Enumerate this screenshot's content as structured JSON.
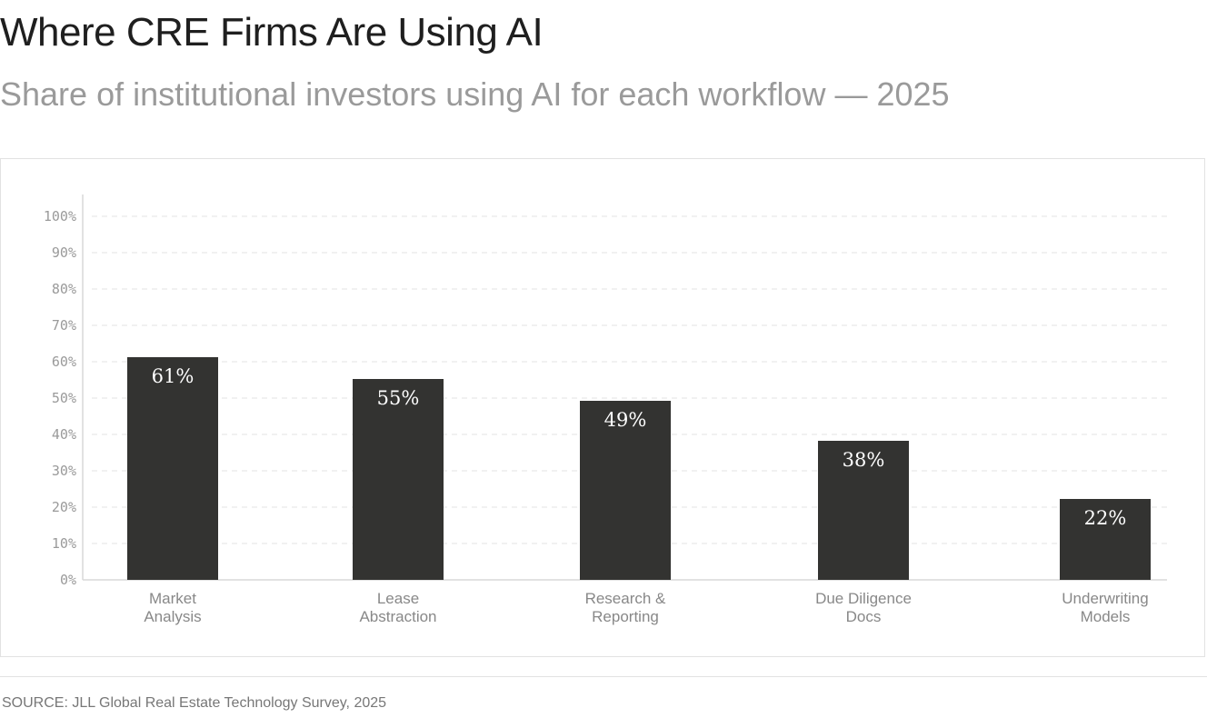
{
  "header": {
    "title": "Where CRE Firms Are Using AI",
    "subtitle": "Share of institutional investors using AI for each workflow — 2025"
  },
  "footer": {
    "source": "SOURCE: JLL Global Real Estate Technology Survey, 2025"
  },
  "colors": {
    "bar": "#333331",
    "grid": "#e3e3e3",
    "axis": "#d8d8d8",
    "tick_text": "#9a9a9a",
    "category_text": "#888888",
    "value_text": "#ffffff"
  },
  "chart_data": {
    "type": "bar",
    "categories": [
      [
        "Market",
        "Analysis"
      ],
      [
        "Lease",
        "Abstraction"
      ],
      [
        "Research &",
        "Reporting"
      ],
      [
        "Due Diligence",
        "Docs"
      ],
      [
        "Underwriting",
        "Models"
      ]
    ],
    "values": [
      61,
      55,
      49,
      38,
      22
    ],
    "value_labels": [
      "61%",
      "55%",
      "49%",
      "38%",
      "22%"
    ],
    "y_ticks": [
      0,
      10,
      20,
      30,
      40,
      50,
      60,
      70,
      80,
      90,
      100
    ],
    "y_tick_labels": [
      "0%",
      "10%",
      "20%",
      "30%",
      "40%",
      "50%",
      "60%",
      "70%",
      "80%",
      "90%",
      "100%"
    ],
    "ylim": [
      0,
      100
    ],
    "grid": true,
    "legend": "none"
  }
}
